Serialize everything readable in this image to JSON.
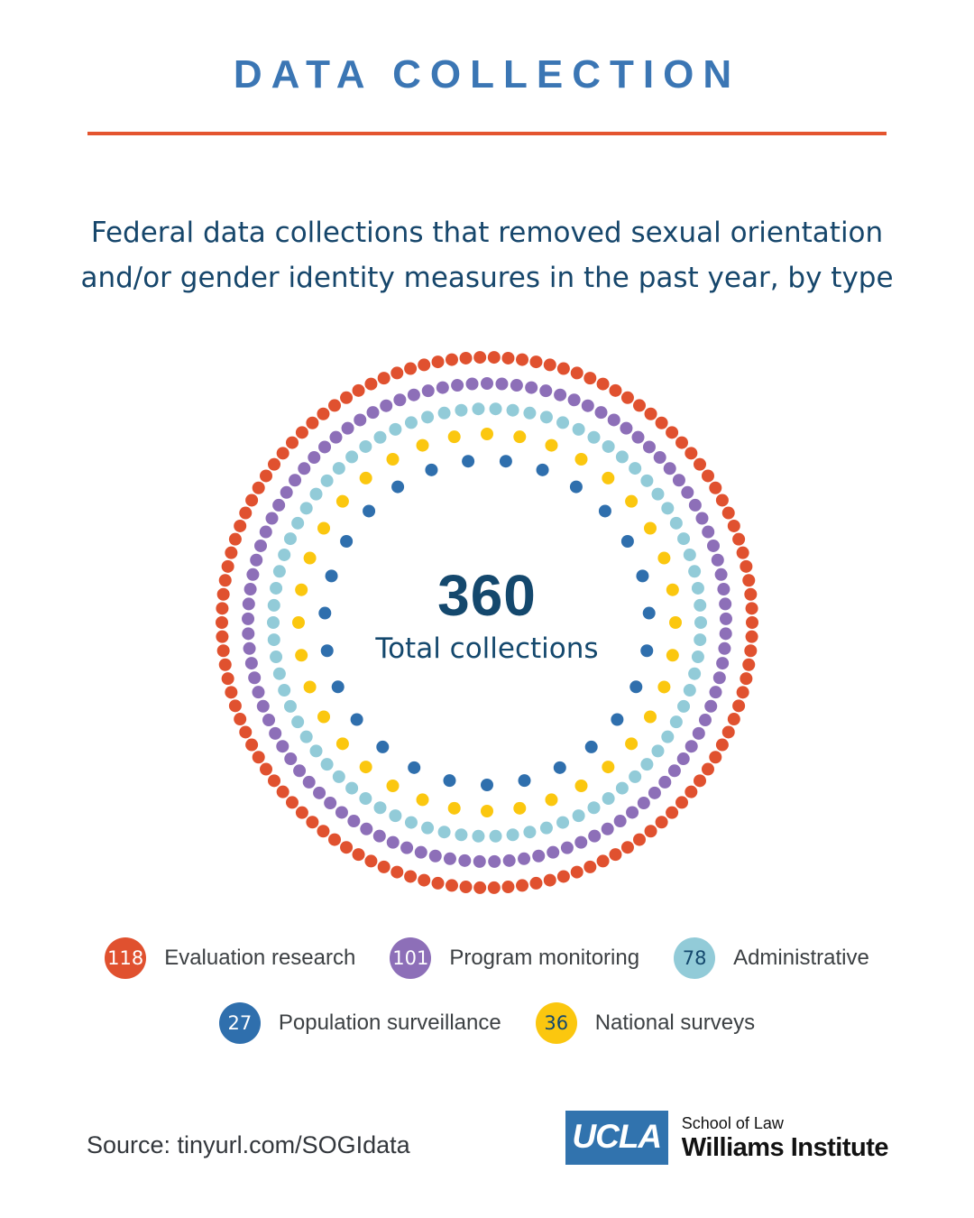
{
  "header": {
    "title": "DATA COLLECTION",
    "title_color": "#3B76B4",
    "divider_color": "#E4552F",
    "subtitle_line1": "Federal data collections that removed sexual orientation",
    "subtitle_line2": "and/or gender identity measures in the past year, by type",
    "subtitle_color": "#16466B"
  },
  "chart_data": {
    "type": "pie",
    "variant": "concentric-dot-rings",
    "title": "Federal data collections that removed sexual orientation and/or gender identity measures in the past year, by type",
    "categories": [
      "Evaluation research",
      "Program monitoring",
      "Administrative",
      "National surveys",
      "Population surveillance"
    ],
    "values": [
      118,
      101,
      78,
      36,
      27
    ],
    "total": 360,
    "center_value": "360",
    "center_label": "Total collections",
    "center_text_color": "#14486D",
    "dot_radius": 7,
    "rings": [
      {
        "name": "Evaluation research",
        "value": 118,
        "color": "#E0512F",
        "radius": 294,
        "offset": 0.5
      },
      {
        "name": "Program monitoring",
        "value": 101,
        "color": "#8D6FB8",
        "radius": 265,
        "offset": 0
      },
      {
        "name": "Administrative",
        "value": 78,
        "color": "#92CBD8",
        "radius": 237,
        "offset": 0.5
      },
      {
        "name": "National surveys",
        "value": 36,
        "color": "#FBC70F",
        "radius": 209,
        "offset": 0
      },
      {
        "name": "Population surveillance",
        "value": 27,
        "color": "#2F6FAD",
        "radius": 180,
        "offset": 0.5
      }
    ],
    "legend_position": "bottom"
  },
  "legend": {
    "rows": [
      {
        "items": [
          {
            "value": "118",
            "label": "Evaluation research",
            "color": "#E0512F",
            "text_color": "#FFFFFF"
          },
          {
            "value": "101",
            "label": "Program monitoring",
            "color": "#8D6FB8",
            "text_color": "#FFFFFF"
          },
          {
            "value": "78",
            "label": "Administrative",
            "color": "#92CBD8",
            "text_color": "#14486D"
          }
        ]
      },
      {
        "items": [
          {
            "value": "27",
            "label": "Population surveillance",
            "color": "#2F6FAD",
            "text_color": "#FFFFFF"
          },
          {
            "value": "36",
            "label": "National surveys",
            "color": "#FBC70F",
            "text_color": "#14486D"
          }
        ]
      }
    ]
  },
  "footer": {
    "source": "Source: tinyurl.com/SOGIdata",
    "logo": {
      "ucla": "UCLA",
      "school": "School of Law",
      "institute": "Williams Institute",
      "box_color": "#3173AE"
    }
  }
}
